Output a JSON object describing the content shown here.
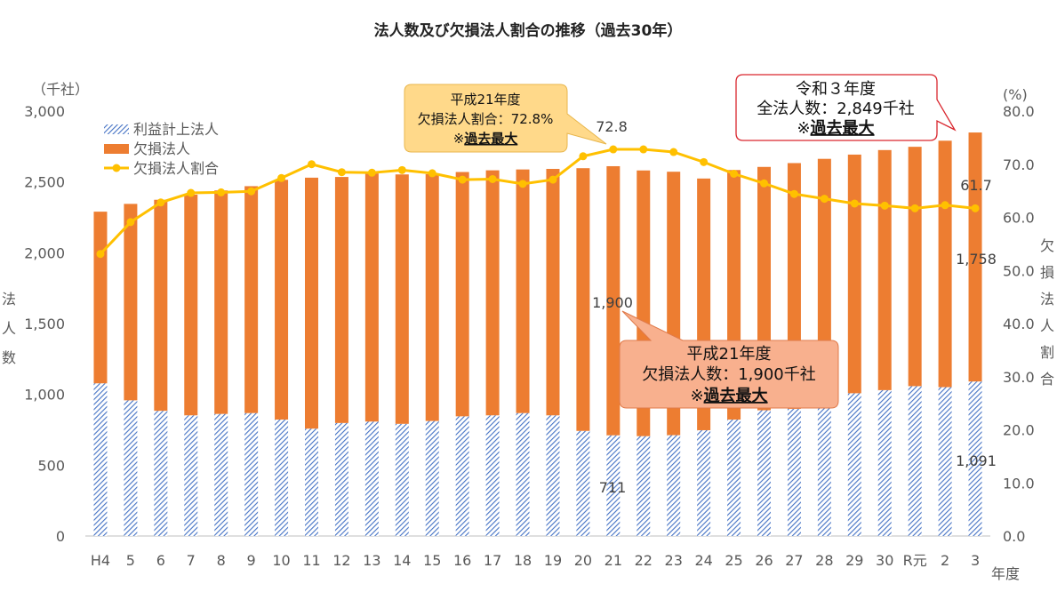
{
  "chart_data": {
    "type": "bar",
    "title": "法人数及び欠損法人割合の推移（過去30年）",
    "categories": [
      "H4",
      "5",
      "6",
      "7",
      "8",
      "9",
      "10",
      "11",
      "12",
      "13",
      "14",
      "15",
      "16",
      "17",
      "18",
      "19",
      "20",
      "21",
      "22",
      "23",
      "24",
      "25",
      "26",
      "27",
      "28",
      "29",
      "30",
      "R元",
      "2",
      "3"
    ],
    "series": [
      {
        "name": "利益計上法人",
        "kind": "bar-stack-bottom",
        "color": "#4472C4",
        "values": [
          1078,
          958,
          884,
          852,
          862,
          868,
          822,
          758,
          798,
          808,
          792,
          812,
          845,
          852,
          868,
          852,
          742,
          711,
          705,
          712,
          747,
          822,
          888,
          898,
          905,
          1008,
          1030,
          1058,
          1051,
          1091
        ]
      },
      {
        "name": "欠損法人",
        "kind": "bar-stack-top",
        "color": "#ED7D31",
        "values": [
          1212,
          1387,
          1490,
          1558,
          1578,
          1602,
          1693,
          1772,
          1737,
          1752,
          1761,
          1743,
          1725,
          1730,
          1720,
          1740,
          1855,
          1900,
          1876,
          1860,
          1777,
          1762,
          1718,
          1735,
          1758,
          1685,
          1695,
          1690,
          1740,
          1758
        ]
      },
      {
        "name": "欠損法人割合",
        "kind": "line-secondary",
        "color": "#FFC000",
        "values": [
          53.1,
          59.1,
          62.8,
          64.6,
          64.7,
          64.9,
          67.4,
          70.0,
          68.5,
          68.4,
          68.9,
          68.3,
          67.1,
          67.2,
          66.3,
          67.1,
          71.5,
          72.8,
          72.8,
          72.3,
          70.4,
          68.2,
          66.4,
          64.4,
          63.5,
          62.6,
          62.2,
          61.7,
          62.3,
          61.7
        ]
      }
    ],
    "ylabel": "法人数",
    "ylabel_unit": "（千社）",
    "y2label": "欠損法人割合",
    "y2label_unit": "(%)",
    "xlabel_unit": "年度",
    "ylim": [
      0,
      3000
    ],
    "yticks": [
      "0",
      "500",
      "1,000",
      "1,500",
      "2,000",
      "2,500",
      "3,000"
    ],
    "y2lim": [
      0,
      80
    ],
    "y2ticks": [
      "0.0",
      "10.0",
      "20.0",
      "30.0",
      "40.0",
      "50.0",
      "60.0",
      "70.0",
      "80.0"
    ],
    "grid": false,
    "legend": "top-left",
    "data_labels": {
      "peak_rate": "72.8",
      "last_rate": "61.7",
      "peak_loss": "1,900",
      "last_loss": "1,758",
      "peak_profit": "711",
      "last_profit": "1,091"
    },
    "callouts": [
      {
        "lines": [
          "平成21年度",
          "欠損法人割合：72.8%"
        ],
        "note_prefix": "※",
        "note_emph": "過去最大",
        "color": "#FFD98A"
      },
      {
        "lines": [
          "令和３年度",
          "全法人数：2,849千社"
        ],
        "note_prefix": "※",
        "note_emph": "過去最大",
        "color": "#FFFFFF"
      },
      {
        "lines": [
          "平成21年度",
          "欠損法人数：1,900千社"
        ],
        "note_prefix": "※",
        "note_emph": "過去最大",
        "color": "#F8B08E"
      }
    ]
  }
}
